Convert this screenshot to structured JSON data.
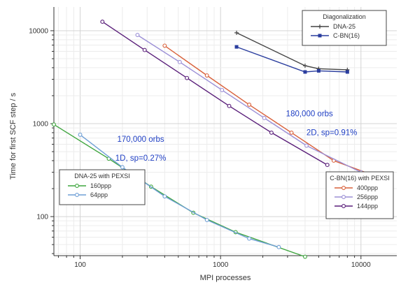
{
  "chart_data": {
    "type": "line",
    "xlabel": "MPI processes",
    "ylabel": "Time for first SCF step / s",
    "xscale": "log",
    "yscale": "log",
    "xlim": [
      65,
      18000
    ],
    "ylim": [
      38,
      18000
    ],
    "x_ticks": [
      {
        "value": 100,
        "label": "100"
      },
      {
        "value": 1000,
        "label": "1000"
      },
      {
        "value": 10000,
        "label": "10000"
      }
    ],
    "y_ticks": [
      {
        "value": 100,
        "label": "100"
      },
      {
        "value": 1000,
        "label": "1000"
      },
      {
        "value": 10000,
        "label": "10000"
      }
    ],
    "grid": true,
    "legends": [
      {
        "title": "Diagonalization",
        "placement": "top-right",
        "entries": [
          {
            "series": "diag-dna25",
            "label": "DNA-25"
          },
          {
            "series": "diag-cbn",
            "label": "C-BN(16)"
          }
        ]
      },
      {
        "title": "DNA-25 with PEXSI",
        "placement": "lower-left",
        "entries": [
          {
            "series": "dna-160ppp",
            "label": "160ppp"
          },
          {
            "series": "dna-64ppp",
            "label": "64ppp"
          }
        ]
      },
      {
        "title": "C-BN(16) with PEXSI",
        "placement": "lower-right",
        "entries": [
          {
            "series": "cbn-400ppp",
            "label": "400ppp"
          },
          {
            "series": "cbn-256ppp",
            "label": "256ppp"
          },
          {
            "series": "cbn-144ppp",
            "label": "144ppp"
          }
        ]
      }
    ],
    "series": [
      {
        "id": "diag-dna25",
        "color": "#444444",
        "marker": "cross",
        "points": [
          [
            1300,
            9500
          ],
          [
            4000,
            4200
          ],
          [
            5000,
            3900
          ],
          [
            8000,
            3800
          ]
        ]
      },
      {
        "id": "diag-cbn",
        "color": "#2a3d9e",
        "marker": "square",
        "points": [
          [
            1300,
            6700
          ],
          [
            4000,
            3600
          ],
          [
            5000,
            3700
          ],
          [
            8000,
            3600
          ]
        ]
      },
      {
        "id": "cbn-400ppp",
        "color": "#d9603a",
        "marker": "circle",
        "points": [
          [
            400,
            6900
          ],
          [
            800,
            3300
          ],
          [
            1600,
            1600
          ],
          [
            3200,
            800
          ],
          [
            6400,
            400
          ],
          [
            16000,
            240
          ]
        ]
      },
      {
        "id": "cbn-256ppp",
        "color": "#9b8fd6",
        "marker": "circle",
        "points": [
          [
            256,
            9000
          ],
          [
            512,
            4600
          ],
          [
            1024,
            2300
          ],
          [
            2048,
            1150
          ],
          [
            4096,
            580
          ],
          [
            10000,
            300
          ]
        ]
      },
      {
        "id": "cbn-144ppp",
        "color": "#5a1f7a",
        "marker": "circle",
        "points": [
          [
            144,
            12500
          ],
          [
            288,
            6200
          ],
          [
            576,
            3100
          ],
          [
            1152,
            1550
          ],
          [
            2304,
            800
          ],
          [
            5760,
            360
          ]
        ]
      },
      {
        "id": "dna-160ppp",
        "color": "#3fa63f",
        "marker": "circle",
        "points": [
          [
            65,
            980
          ],
          [
            160,
            420
          ],
          [
            320,
            210
          ],
          [
            640,
            110
          ],
          [
            1280,
            68
          ],
          [
            4000,
            37
          ]
        ]
      },
      {
        "id": "dna-64ppp",
        "color": "#6f9fd6",
        "marker": "circle",
        "points": [
          [
            100,
            760
          ],
          [
            200,
            340
          ],
          [
            400,
            165
          ],
          [
            800,
            92
          ],
          [
            1600,
            58
          ],
          [
            2600,
            47
          ]
        ]
      }
    ],
    "annotations": [
      {
        "text": "180,000 orbs",
        "at": [
          4300,
          1200
        ]
      },
      {
        "text": "2D, sp=0.91%",
        "at": [
          6200,
          750
        ]
      },
      {
        "text": "170,000 orbs",
        "at": [
          270,
          640
        ]
      },
      {
        "text": "1D, sp=0.27%",
        "at": [
          270,
          400
        ]
      }
    ]
  }
}
